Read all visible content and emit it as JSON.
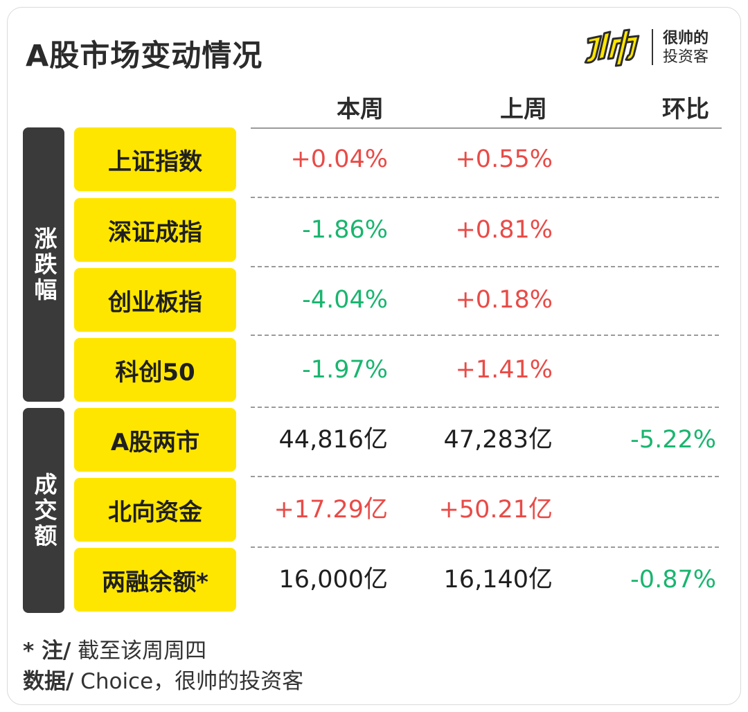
{
  "title": "A股市场变动情况",
  "logo": {
    "line1": "很帅的",
    "line2": "投资客"
  },
  "columns": {
    "this_week": "本周",
    "last_week": "上周",
    "ratio": "环比"
  },
  "groups": {
    "change": "涨跌幅",
    "volume": "成交额"
  },
  "rows": [
    {
      "label": "上证指数",
      "this_week": "+0.04%",
      "last_week": "+0.55%",
      "ratio": ""
    },
    {
      "label": "深证成指",
      "this_week": "-1.86%",
      "last_week": "+0.81%",
      "ratio": ""
    },
    {
      "label": "创业板指",
      "this_week": "-4.04%",
      "last_week": "+0.18%",
      "ratio": ""
    },
    {
      "label": "科创50",
      "this_week": "-1.97%",
      "last_week": "+1.41%",
      "ratio": ""
    },
    {
      "label": "A股两市",
      "this_week": "44,816亿",
      "last_week": "47,283亿",
      "ratio": "-5.22%"
    },
    {
      "label": "北向资金",
      "this_week": "+17.29亿",
      "last_week": "+50.21亿",
      "ratio": ""
    },
    {
      "label": "两融余额*",
      "this_week": "16,000亿",
      "last_week": "16,140亿",
      "ratio": "-0.87%"
    }
  ],
  "footnote": {
    "note_label": "* 注/",
    "note_text": " 截至该周周四",
    "source_label": "数据/",
    "source_text": " Choice，很帅的投资客"
  },
  "colors": {
    "accent_yellow": "#ffe600",
    "up_red": "#e84b47",
    "down_green": "#19b56f",
    "dark": "#3a3a3a"
  }
}
